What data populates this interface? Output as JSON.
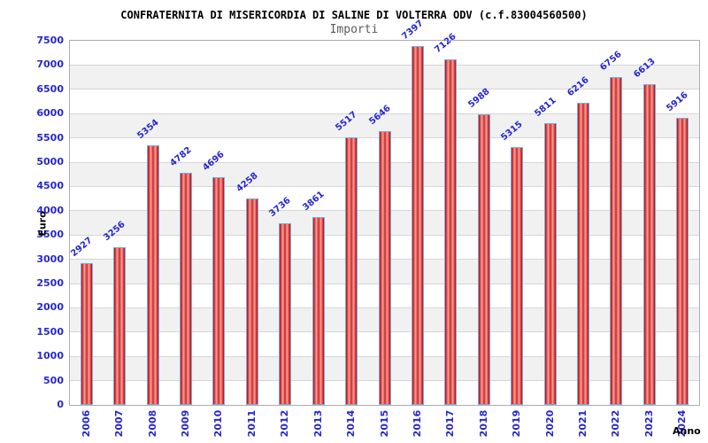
{
  "header": {
    "title": "CONFRATERNITA DI MISERICORDIA DI SALINE DI VOLTERRA ODV (c.f.83004560500)",
    "subtitle": "Importi"
  },
  "chart_data": {
    "type": "bar",
    "title": "CONFRATERNITA DI MISERICORDIA DI SALINE DI VOLTERRA ODV (c.f.83004560500)",
    "subtitle": "Importi",
    "categories": [
      "2006",
      "2007",
      "2008",
      "2009",
      "2010",
      "2011",
      "2012",
      "2013",
      "2014",
      "2015",
      "2016",
      "2017",
      "2018",
      "2019",
      "2020",
      "2021",
      "2022",
      "2023",
      "2024"
    ],
    "values": [
      2927,
      3256,
      5354,
      4782,
      4696,
      4258,
      3736,
      3861,
      5517,
      5646,
      7397,
      7126,
      5988,
      5315,
      5811,
      6216,
      6756,
      6613,
      5916
    ],
    "xlabel": "Anno",
    "ylabel": "Euro",
    "ylim": [
      0,
      7500
    ],
    "ytick_step": 500,
    "y_ticks": [
      0,
      500,
      1000,
      1500,
      2000,
      2500,
      3000,
      3500,
      4000,
      4500,
      5000,
      5500,
      6000,
      6500,
      7000,
      7500
    ],
    "grid": true,
    "legend": false,
    "value_labels_rotation_deg": -40,
    "x_labels_rotation_deg": -90,
    "colors": {
      "bar_fill": "#cf2626",
      "bar_fill_edge": "#9e1212",
      "bar_fill_highlight": "#f2a49c",
      "bar_border": "#79ade0",
      "label_text": "#2626cf",
      "tick_text": "#2626cf",
      "axis_title_text": "#000000",
      "title_text": "#000000",
      "subtitle_text": "#5a5a5a",
      "band_fill": "#f1f1f1",
      "gridline": "#d6d6d6",
      "plot_border": "#adadad",
      "background": "#ffffff"
    }
  }
}
